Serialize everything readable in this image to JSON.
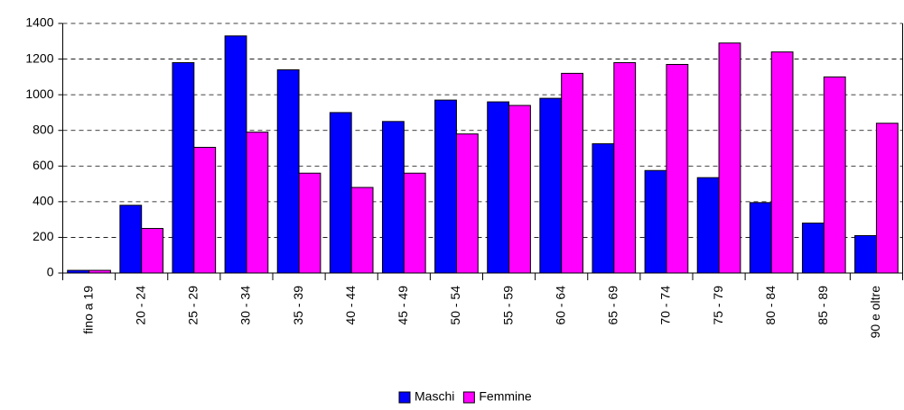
{
  "chart_data": {
    "type": "bar",
    "categories": [
      "fino a 19",
      "20 - 24",
      "25 - 29",
      "30 - 34",
      "35 - 39",
      "40 - 44",
      "45 - 49",
      "50 - 54",
      "55 - 59",
      "60 - 64",
      "65 - 69",
      "70 - 74",
      "75 - 79",
      "80 - 84",
      "85 - 89",
      "90 e oltre"
    ],
    "series": [
      {
        "name": "Maschi",
        "color": "#0000ff",
        "values": [
          15,
          380,
          1180,
          1330,
          1140,
          900,
          850,
          970,
          960,
          980,
          725,
          575,
          535,
          395,
          280,
          210
        ]
      },
      {
        "name": "Femmine",
        "color": "#ff00ff",
        "values": [
          15,
          250,
          705,
          790,
          560,
          480,
          560,
          780,
          940,
          1120,
          1180,
          1170,
          1290,
          1240,
          1100,
          840
        ]
      }
    ],
    "ylim": [
      0,
      1400
    ],
    "yticks": [
      0,
      200,
      400,
      600,
      800,
      1000,
      1200,
      1400
    ],
    "grid": true,
    "legend": "bottom"
  }
}
